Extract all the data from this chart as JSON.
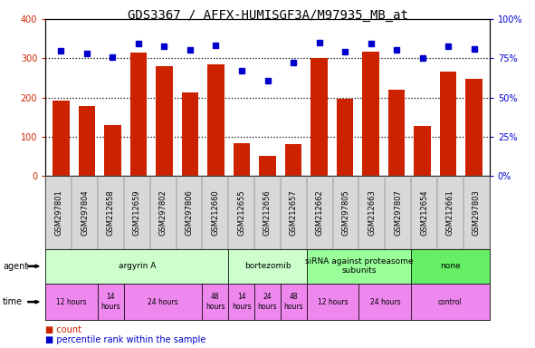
{
  "title": "GDS3367 / AFFX-HUMISGF3A/M97935_MB_at",
  "samples": [
    "GSM297801",
    "GSM297804",
    "GSM212658",
    "GSM212659",
    "GSM297802",
    "GSM297806",
    "GSM212660",
    "GSM212655",
    "GSM212656",
    "GSM212657",
    "GSM212662",
    "GSM297805",
    "GSM212663",
    "GSM297807",
    "GSM212654",
    "GSM212661",
    "GSM297803"
  ],
  "counts": [
    193,
    178,
    130,
    315,
    280,
    213,
    285,
    82,
    50,
    80,
    300,
    196,
    318,
    220,
    128,
    267,
    247
  ],
  "percentiles": [
    80,
    78,
    76,
    84.5,
    82.5,
    80.5,
    83.5,
    67,
    61,
    72.5,
    85,
    79.5,
    84.5,
    80.5,
    75,
    82.5,
    81
  ],
  "ylim_left": [
    0,
    400
  ],
  "ylim_right": [
    0,
    100
  ],
  "yticks_left": [
    0,
    100,
    200,
    300,
    400
  ],
  "yticks_right": [
    0,
    25,
    50,
    75,
    100
  ],
  "agent_groups": [
    {
      "label": "argyrin A",
      "start": 0,
      "end": 7,
      "color": "#ccffcc"
    },
    {
      "label": "bortezomib",
      "start": 7,
      "end": 10,
      "color": "#ccffcc"
    },
    {
      "label": "siRNA against proteasome\nsubunits",
      "start": 10,
      "end": 14,
      "color": "#99ff99"
    },
    {
      "label": "none",
      "start": 14,
      "end": 17,
      "color": "#66ee66"
    }
  ],
  "time_groups": [
    {
      "label": "12 hours",
      "start": 0,
      "end": 2,
      "color": "#ee88ee"
    },
    {
      "label": "14\nhours",
      "start": 2,
      "end": 3,
      "color": "#ee88ee"
    },
    {
      "label": "24 hours",
      "start": 3,
      "end": 6,
      "color": "#ee88ee"
    },
    {
      "label": "48\nhours",
      "start": 6,
      "end": 7,
      "color": "#ee88ee"
    },
    {
      "label": "14\nhours",
      "start": 7,
      "end": 8,
      "color": "#ee88ee"
    },
    {
      "label": "24\nhours",
      "start": 8,
      "end": 9,
      "color": "#ee88ee"
    },
    {
      "label": "48\nhours",
      "start": 9,
      "end": 10,
      "color": "#ee88ee"
    },
    {
      "label": "12 hours",
      "start": 10,
      "end": 12,
      "color": "#ee88ee"
    },
    {
      "label": "24 hours",
      "start": 12,
      "end": 14,
      "color": "#ee88ee"
    },
    {
      "label": "control",
      "start": 14,
      "end": 17,
      "color": "#ee88ee"
    }
  ],
  "bar_color": "#cc2200",
  "dot_color": "#0000cc",
  "bg_color": "#ffffff",
  "plot_bg": "#ffffff",
  "sample_bg": "#d8d8d8",
  "title_fontsize": 10,
  "tick_fontsize": 7,
  "sample_fontsize": 6,
  "table_fontsize": 7,
  "legend_fontsize": 7
}
